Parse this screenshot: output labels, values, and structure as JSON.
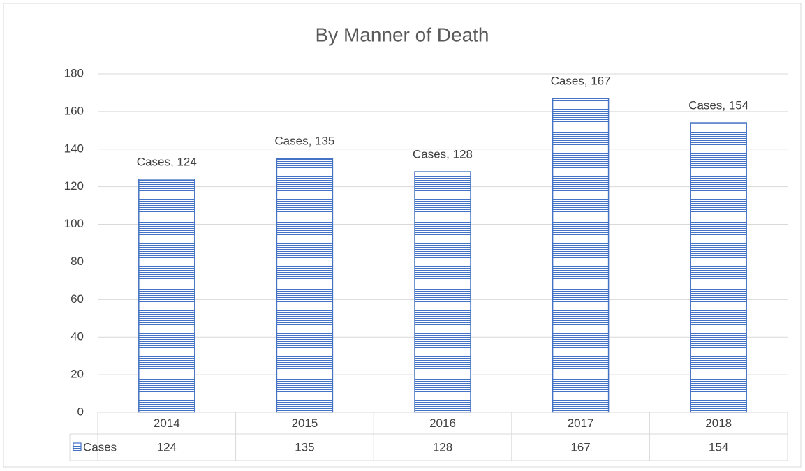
{
  "chart_data": {
    "type": "bar",
    "title": "By Manner of Death",
    "categories": [
      "2014",
      "2015",
      "2016",
      "2017",
      "2018"
    ],
    "series": [
      {
        "name": "Cases",
        "color": "#4472c4",
        "values": [
          124,
          135,
          128,
          167,
          154
        ],
        "value_labels": [
          "Cases, 124",
          "Cases, 135",
          "Cases, 128",
          "Cases, 167",
          "Cases, 154"
        ]
      }
    ],
    "ylim": [
      0,
      180
    ],
    "yticks": [
      0,
      20,
      40,
      60,
      80,
      100,
      120,
      140,
      160,
      180
    ],
    "grid": true,
    "data_table": true
  }
}
